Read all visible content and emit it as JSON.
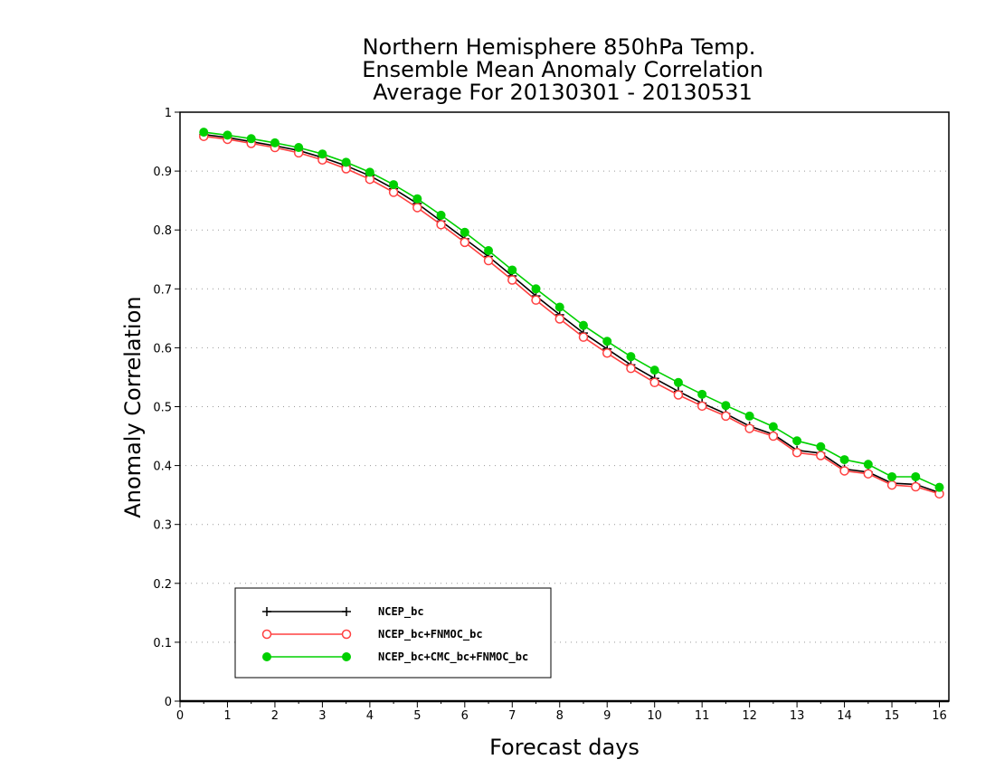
{
  "chart_data": {
    "type": "line",
    "title_lines": [
      "Northern Hemisphere 850hPa Temp.",
      "Ensemble Mean Anomaly Correlation",
      "Average For 20130301 - 20130531"
    ],
    "xlabel": "Forecast days",
    "ylabel": "Anomaly Correlation",
    "xlim": [
      0,
      16.2
    ],
    "ylim": [
      0,
      1
    ],
    "x_ticks": [
      0,
      1,
      2,
      3,
      4,
      5,
      6,
      7,
      8,
      9,
      10,
      11,
      12,
      13,
      14,
      15,
      16
    ],
    "y_ticks": [
      0,
      0.1,
      0.2,
      0.3,
      0.4,
      0.5,
      0.6,
      0.7,
      0.8,
      0.9,
      1
    ],
    "y_tick_labels": [
      "0",
      "0.1",
      "0.2",
      "0.3",
      "0.4",
      "0.5",
      "0.6",
      "0.7",
      "0.8",
      "0.9",
      "1"
    ],
    "grid": "horizontal dotted",
    "legend_position": "lower-left",
    "x": [
      0.5,
      1,
      1.5,
      2,
      2.5,
      3,
      3.5,
      4,
      4.5,
      5,
      5.5,
      6,
      6.5,
      7,
      7.5,
      8,
      8.5,
      9,
      9.5,
      10,
      10.5,
      11,
      11.5,
      12,
      12.5,
      13,
      13.5,
      14,
      14.5,
      15,
      15.5,
      16
    ],
    "series": [
      {
        "name": "NCEP_bc",
        "color": "#000000",
        "marker": "plus",
        "values": [
          0.962,
          0.957,
          0.95,
          0.943,
          0.935,
          0.923,
          0.909,
          0.892,
          0.87,
          0.845,
          0.815,
          0.785,
          0.755,
          0.722,
          0.688,
          0.656,
          0.625,
          0.598,
          0.571,
          0.548,
          0.526,
          0.506,
          0.488,
          0.467,
          0.453,
          0.426,
          0.421,
          0.394,
          0.389,
          0.37,
          0.368,
          0.354
        ]
      },
      {
        "name": "NCEP_bc+FNMOC_bc",
        "color": "#ff4040",
        "marker": "open-circle",
        "values": [
          0.959,
          0.954,
          0.947,
          0.94,
          0.931,
          0.919,
          0.904,
          0.886,
          0.864,
          0.838,
          0.809,
          0.779,
          0.748,
          0.715,
          0.681,
          0.649,
          0.618,
          0.591,
          0.565,
          0.541,
          0.52,
          0.501,
          0.484,
          0.463,
          0.45,
          0.422,
          0.417,
          0.391,
          0.386,
          0.367,
          0.364,
          0.352
        ]
      },
      {
        "name": "NCEP_bc+CMC_bc+FNMOC_bc",
        "color": "#00d000",
        "marker": "filled-circle",
        "values": [
          0.966,
          0.961,
          0.955,
          0.948,
          0.94,
          0.929,
          0.915,
          0.898,
          0.877,
          0.853,
          0.825,
          0.796,
          0.765,
          0.732,
          0.7,
          0.669,
          0.638,
          0.611,
          0.585,
          0.562,
          0.541,
          0.521,
          0.502,
          0.484,
          0.466,
          0.442,
          0.432,
          0.41,
          0.402,
          0.381,
          0.381,
          0.363
        ]
      }
    ]
  }
}
